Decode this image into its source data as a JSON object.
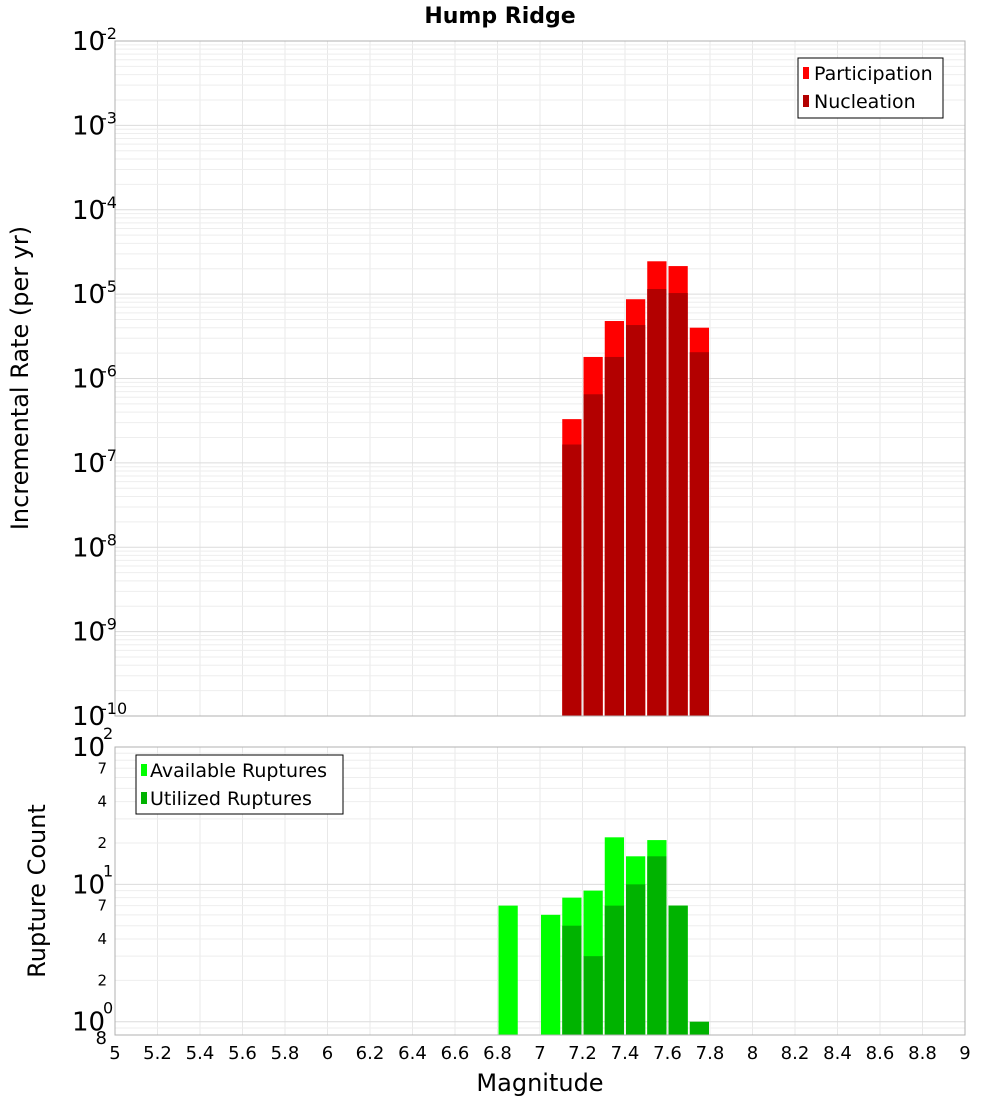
{
  "chart_data": [
    {
      "type": "bar",
      "title": "Hump Ridge",
      "ylabel": "Incremental Rate (per yr)",
      "xlabel": "",
      "yscale": "log",
      "ylim": [
        1e-10,
        0.01
      ],
      "xlim": [
        5,
        9
      ],
      "bin_width": 0.1,
      "y_tick_base": "10",
      "y_tick_exponents": [
        "-10",
        "-9",
        "-8",
        "-7",
        "-6",
        "-5",
        "-4",
        "-3",
        "-2"
      ],
      "legend": {
        "placement": "top-right",
        "entries": [
          "Participation",
          "Nucleation"
        ]
      },
      "colors": {
        "Participation": "#ff0000",
        "Nucleation": "#b30000"
      },
      "x": [
        7.15,
        7.25,
        7.35,
        7.45,
        7.55,
        7.65,
        7.75
      ],
      "series": [
        {
          "name": "Participation",
          "values": [
            3.3e-07,
            1.8e-06,
            4.8e-06,
            8.7e-06,
            2.45e-05,
            2.15e-05,
            4e-06
          ]
        },
        {
          "name": "Nucleation",
          "values": [
            1.65e-07,
            6.5e-07,
            1.8e-06,
            4.3e-06,
            1.15e-05,
            1.03e-05,
            2.05e-06
          ]
        }
      ]
    },
    {
      "type": "bar",
      "title": "",
      "ylabel": "Rupture Count",
      "xlabel": "Magnitude",
      "yscale": "log",
      "ylim": [
        0.8,
        100
      ],
      "xlim": [
        5,
        9
      ],
      "x_ticks": [
        "5",
        "5.2",
        "5.4",
        "5.6",
        "5.8",
        "6",
        "6.2",
        "6.4",
        "6.6",
        "6.8",
        "7",
        "7.2",
        "7.4",
        "7.6",
        "7.8",
        "8",
        "8.2",
        "8.4",
        "8.6",
        "8.8",
        "9"
      ],
      "y_tick_base": "10",
      "y_tick_exponents": [
        "0",
        "1",
        "2"
      ],
      "y_minor_labels": [
        "2",
        "4",
        "7",
        "2",
        "4",
        "7"
      ],
      "y_bottom_label": "8",
      "bin_width": 0.1,
      "legend": {
        "placement": "top-left",
        "entries": [
          "Available Ruptures",
          "Utilized Ruptures"
        ]
      },
      "colors": {
        "Available Ruptures": "#00ff00",
        "Utilized Ruptures": "#00b300"
      },
      "series": [
        {
          "name": "Available Ruptures",
          "x": [
            6.85,
            7.05,
            7.15,
            7.25,
            7.35,
            7.45,
            7.55,
            7.65
          ],
          "values": [
            7,
            6,
            8,
            9,
            22,
            16,
            21,
            7
          ]
        },
        {
          "name": "Utilized Ruptures",
          "x": [
            7.15,
            7.25,
            7.35,
            7.45,
            7.55,
            7.65,
            7.75
          ],
          "values": [
            5,
            3,
            7,
            10,
            16,
            7,
            1
          ]
        }
      ]
    }
  ]
}
